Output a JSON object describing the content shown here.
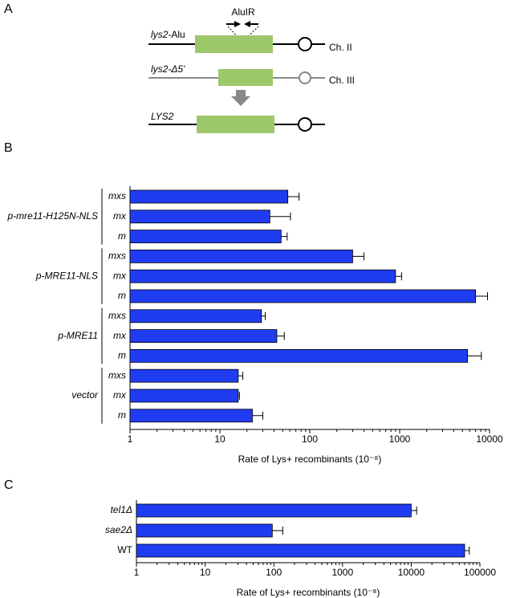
{
  "diagram": {
    "panel_label": "A",
    "alu_ir": "AluIR",
    "rows": [
      {
        "gene": "lys2",
        "suffix": "-Alu",
        "chromosome": "Ch. II"
      },
      {
        "gene": "lys2-Δ5'",
        "chromosome": "Ch. III"
      },
      {
        "gene": "LYS2"
      }
    ]
  },
  "chart_data": [
    {
      "type": "bar",
      "panel_label": "B",
      "orientation": "horizontal",
      "log_x": true,
      "color": "#1f3cf0",
      "xlabel": "Rate of Lys+ recombinants (10⁻⁸)",
      "xlim": [
        1,
        10000
      ],
      "xticks": [
        1,
        10,
        100,
        1000,
        10000
      ],
      "groups": [
        {
          "name": "p-mre11-H125N-NLS",
          "categories": [
            "mxs",
            "mx",
            "m"
          ],
          "values": [
            57,
            36,
            48
          ],
          "errors": [
            19,
            25,
            8
          ]
        },
        {
          "name": "p-MRE11-NLS",
          "categories": [
            "mxs",
            "mx",
            "m"
          ],
          "values": [
            300,
            900,
            7000
          ],
          "errors": [
            100,
            150,
            2500
          ]
        },
        {
          "name": "p-MRE11",
          "categories": [
            "mxs",
            "mx",
            "m"
          ],
          "values": [
            29,
            43,
            5700
          ],
          "errors": [
            3,
            9,
            2400
          ]
        },
        {
          "name": "vector",
          "categories": [
            "mxs",
            "mx",
            "m"
          ],
          "values": [
            16,
            16,
            23
          ],
          "errors": [
            2,
            0.5,
            7
          ]
        }
      ]
    },
    {
      "type": "bar",
      "panel_label": "C",
      "orientation": "horizontal",
      "log_x": true,
      "color": "#1f3cf0",
      "xlabel": "Rate of Lys+ recombinants (10⁻⁸)",
      "xlim": [
        1,
        100000
      ],
      "xticks": [
        1,
        10,
        100,
        1000,
        10000,
        100000
      ],
      "categories": [
        "tel1Δ",
        "sae2Δ",
        "WT"
      ],
      "label_style": [
        "italic",
        "italic",
        "normal"
      ],
      "values": [
        10000,
        95,
        60000
      ],
      "errors": [
        2000,
        40,
        10000
      ]
    }
  ]
}
